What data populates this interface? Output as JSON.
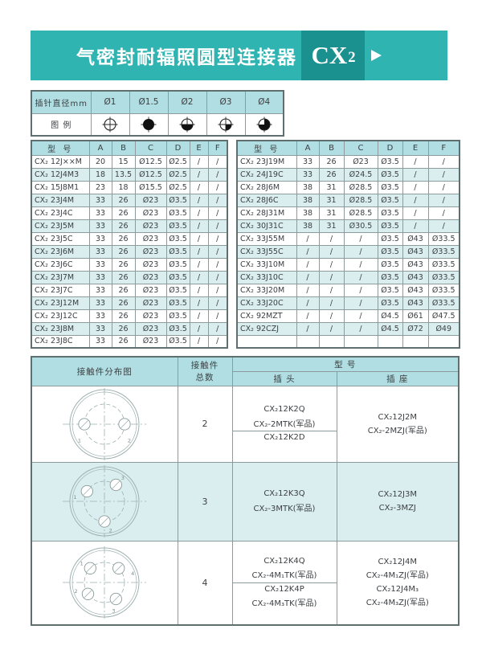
{
  "header": {
    "title": "气密封耐辐照圆型连接器",
    "series_main": "CX",
    "series_sub": "2"
  },
  "pin_table": {
    "row_label": "插针直径mm",
    "legend_label": "图 例",
    "diameters": [
      "Ø1",
      "Ø1.5",
      "Ø2",
      "Ø3",
      "Ø4"
    ],
    "symbols": [
      "pin-open-icon",
      "pin-solid-icon",
      "pin-half-bottom-icon",
      "pin-quarter-icon",
      "pin-three-quarter-icon"
    ]
  },
  "spec_tables": {
    "headers": [
      "型 号",
      "A",
      "B",
      "C",
      "D",
      "E",
      "F"
    ],
    "left_rows": [
      [
        "CX₂ 12J××M",
        "20",
        "15",
        "Ø12.5",
        "Ø2.5",
        "/",
        "/"
      ],
      [
        "CX₂ 12J4M3",
        "18",
        "13.5",
        "Ø12.5",
        "Ø2.5",
        "/",
        "/"
      ],
      [
        "CX₂ 15J8M1",
        "23",
        "18",
        "Ø15.5",
        "Ø2.5",
        "/",
        "/"
      ],
      [
        "CX₂ 23J4M",
        "33",
        "26",
        "Ø23",
        "Ø3.5",
        "/",
        "/"
      ],
      [
        "CX₂ 23J4C",
        "33",
        "26",
        "Ø23",
        "Ø3.5",
        "/",
        "/"
      ],
      [
        "CX₂ 23J5M",
        "33",
        "26",
        "Ø23",
        "Ø3.5",
        "/",
        "/"
      ],
      [
        "CX₂ 23J5C",
        "33",
        "26",
        "Ø23",
        "Ø3.5",
        "/",
        "/"
      ],
      [
        "CX₂ 23J6M",
        "33",
        "26",
        "Ø23",
        "Ø3.5",
        "/",
        "/"
      ],
      [
        "CX₂ 23J6C",
        "33",
        "26",
        "Ø23",
        "Ø3.5",
        "/",
        "/"
      ],
      [
        "CX₂ 23J7M",
        "33",
        "26",
        "Ø23",
        "Ø3.5",
        "/",
        "/"
      ],
      [
        "CX₂ 23J7C",
        "33",
        "26",
        "Ø23",
        "Ø3.5",
        "/",
        "/"
      ],
      [
        "CX₂ 23J12M",
        "33",
        "26",
        "Ø23",
        "Ø3.5",
        "/",
        "/"
      ],
      [
        "CX₂ 23J12C",
        "33",
        "26",
        "Ø23",
        "Ø3.5",
        "/",
        "/"
      ],
      [
        "CX₂ 23J8M",
        "33",
        "26",
        "Ø23",
        "Ø3.5",
        "/",
        "/"
      ],
      [
        "CX₂ 23J8C",
        "33",
        "26",
        "Ø23",
        "Ø3.5",
        "/",
        "/"
      ]
    ],
    "right_rows": [
      [
        "CX₂ 23J19M",
        "33",
        "26",
        "Ø23",
        "Ø3.5",
        "/",
        "/"
      ],
      [
        "CX₂ 24J19C",
        "33",
        "26",
        "Ø24.5",
        "Ø3.5",
        "/",
        "/"
      ],
      [
        "CX₂ 28J6M",
        "38",
        "31",
        "Ø28.5",
        "Ø3.5",
        "/",
        "/"
      ],
      [
        "CX₂ 28J6C",
        "38",
        "31",
        "Ø28.5",
        "Ø3.5",
        "/",
        "/"
      ],
      [
        "CX₂ 28J31M",
        "38",
        "31",
        "Ø28.5",
        "Ø3.5",
        "/",
        "/"
      ],
      [
        "CX₂ 30J31C",
        "38",
        "31",
        "Ø30.5",
        "Ø3.5",
        "/",
        "/"
      ],
      [
        "CX₂ 33J55M",
        "/",
        "/",
        "/",
        "Ø3.5",
        "Ø43",
        "Ø33.5"
      ],
      [
        "CX₂ 33J55C",
        "/",
        "/",
        "/",
        "Ø3.5",
        "Ø43",
        "Ø33.5"
      ],
      [
        "CX₂ 33J10M",
        "/",
        "/",
        "/",
        "Ø3.5",
        "Ø43",
        "Ø33.5"
      ],
      [
        "CX₂ 33J10C",
        "/",
        "/",
        "/",
        "Ø3.5",
        "Ø43",
        "Ø33.5"
      ],
      [
        "CX₂ 33J20M",
        "/",
        "/",
        "/",
        "Ø3.5",
        "Ø43",
        "Ø33.5"
      ],
      [
        "CX₂ 33J20C",
        "/",
        "/",
        "/",
        "Ø3.5",
        "Ø43",
        "Ø33.5"
      ],
      [
        "CX₂ 92MZT",
        "/",
        "/",
        "/",
        "Ø4.5",
        "Ø61",
        "Ø47.5"
      ],
      [
        "CX₂ 92CZJ",
        "/",
        "/",
        "/",
        "Ø4.5",
        "Ø72",
        "Ø49"
      ],
      [
        "",
        "",
        "",
        "",
        "",
        "",
        ""
      ]
    ]
  },
  "contact_table": {
    "col_diagram": "接触件分布图",
    "col_count_line1": "接触件",
    "col_count_line2": "总数",
    "col_model": "型 号",
    "col_plug": "插 头",
    "col_socket": "插 座",
    "rows": [
      {
        "count": "2",
        "pins": [
          {
            "a": 180,
            "l": "1",
            "la": 213
          },
          {
            "a": 0,
            "l": "2",
            "la": 327
          }
        ],
        "plug_parts": [
          [
            "CX₂12K2Q",
            "CX₂-2MTK(军品)"
          ],
          [
            "CX₂12K2D"
          ]
        ],
        "socket": [
          "CX₂12J2M",
          "CX₂-2MZJ(军品)"
        ]
      },
      {
        "count": "3",
        "pins": [
          {
            "a": 150,
            "l": "1",
            "la": 172
          },
          {
            "a": 55,
            "l": "3",
            "la": 52
          },
          {
            "a": 270,
            "l": "2",
            "la": 282
          }
        ],
        "plug_parts": [
          [
            "CX₂12K3Q",
            "CX₂-3MTK(军品)"
          ]
        ],
        "socket": [
          "CX₂12J3M",
          "CX₂-3MZJ"
        ]
      },
      {
        "count": "4",
        "pins": [
          {
            "a": 135,
            "l": "1",
            "la": 140
          },
          {
            "a": 45,
            "l": "4",
            "la": 18
          },
          {
            "a": 215,
            "l": "2",
            "la": 197
          },
          {
            "a": 305,
            "l": "3",
            "la": 288
          }
        ],
        "plug_parts": [
          [
            "CX₂12K4Q",
            "CX₂-4M₁TK(军品)"
          ],
          [
            "CX₂12K4P",
            "CX₂-4M₃TK(军品)"
          ]
        ],
        "socket": [
          "CX₂12J4M",
          "CX₂-4M₁ZJ(军品)",
          "CX₂12J4M₃",
          "CX₂-4M₃ZJ(军品)"
        ]
      }
    ]
  }
}
